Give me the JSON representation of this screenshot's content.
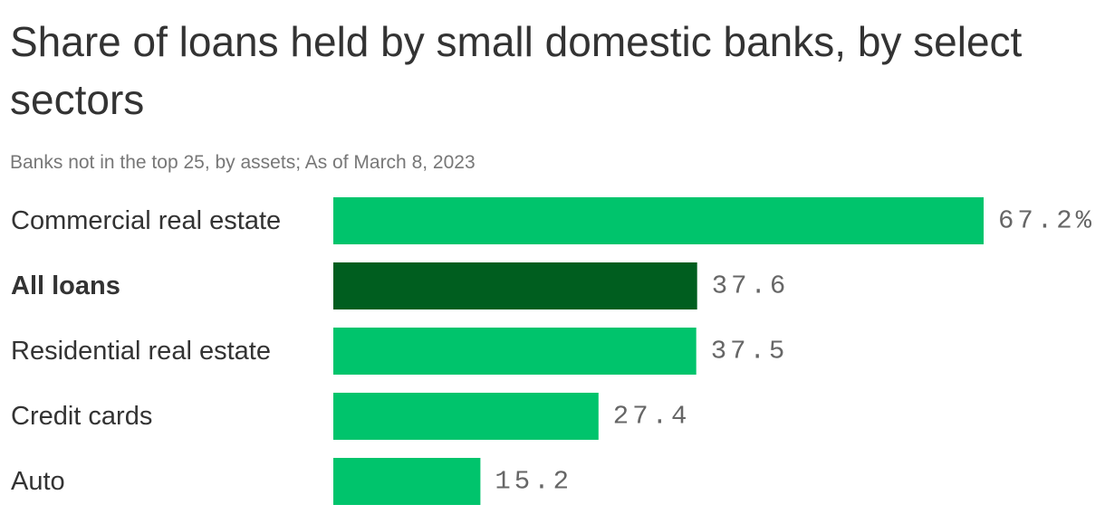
{
  "chart_data": {
    "type": "bar",
    "orientation": "horizontal",
    "title": "Share of loans held by small domestic banks, by select sectors",
    "subtitle": "Banks not in the top 25, by assets; As of March 8, 2023",
    "categories": [
      "Commercial real estate",
      "All loans",
      "Residential real estate",
      "Credit cards",
      "Auto"
    ],
    "values": [
      67.2,
      37.6,
      37.5,
      27.4,
      15.2
    ],
    "value_labels": [
      "67.2%",
      "37.6",
      "37.5",
      "27.4",
      "15.2"
    ],
    "highlight_category": "All loans",
    "colors": {
      "bar": "#00c46c",
      "highlight": "#005e1f",
      "text": "#333333",
      "subtitle": "#777777",
      "value_text": "#666666"
    },
    "xlim": [
      0,
      67.2
    ],
    "grid": false,
    "legend": "none"
  }
}
